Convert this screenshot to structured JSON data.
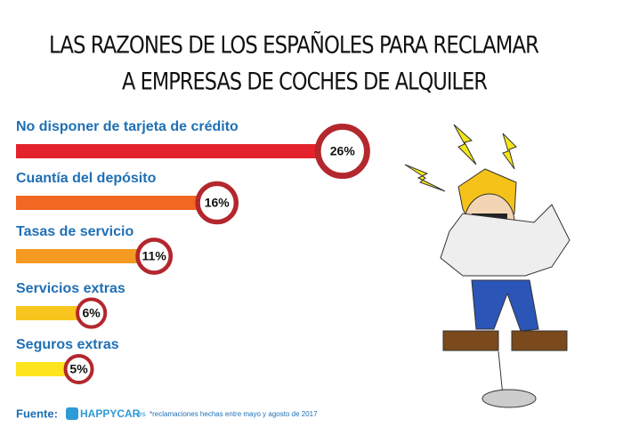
{
  "chart_data": {
    "type": "bar",
    "orientation": "horizontal",
    "title": [
      "LAS RAZONES DE LOS ESPAÑOLES PARA RECLAMAR",
      "A EMPRESAS DE COCHES DE ALQUILER"
    ],
    "categories": [
      "No disponer de tarjeta de crédito",
      "Cuantía del depósito",
      "Tasas de servicio",
      "Servicios extras",
      "Seguros extras"
    ],
    "values": [
      26,
      16,
      11,
      6,
      5
    ],
    "value_labels": [
      "26%",
      "16%",
      "11%",
      "6%",
      "5%"
    ],
    "colors": [
      "#e4222b",
      "#f26722",
      "#f59a21",
      "#f8c51e",
      "#fce51f"
    ],
    "xlim": [
      0,
      28
    ],
    "source": {
      "label": "Fuente:",
      "brand": "HAPPYCAR",
      "domain": ".es",
      "note": "*reclamaciones hechas entre mayo y agosto de 2017"
    }
  }
}
